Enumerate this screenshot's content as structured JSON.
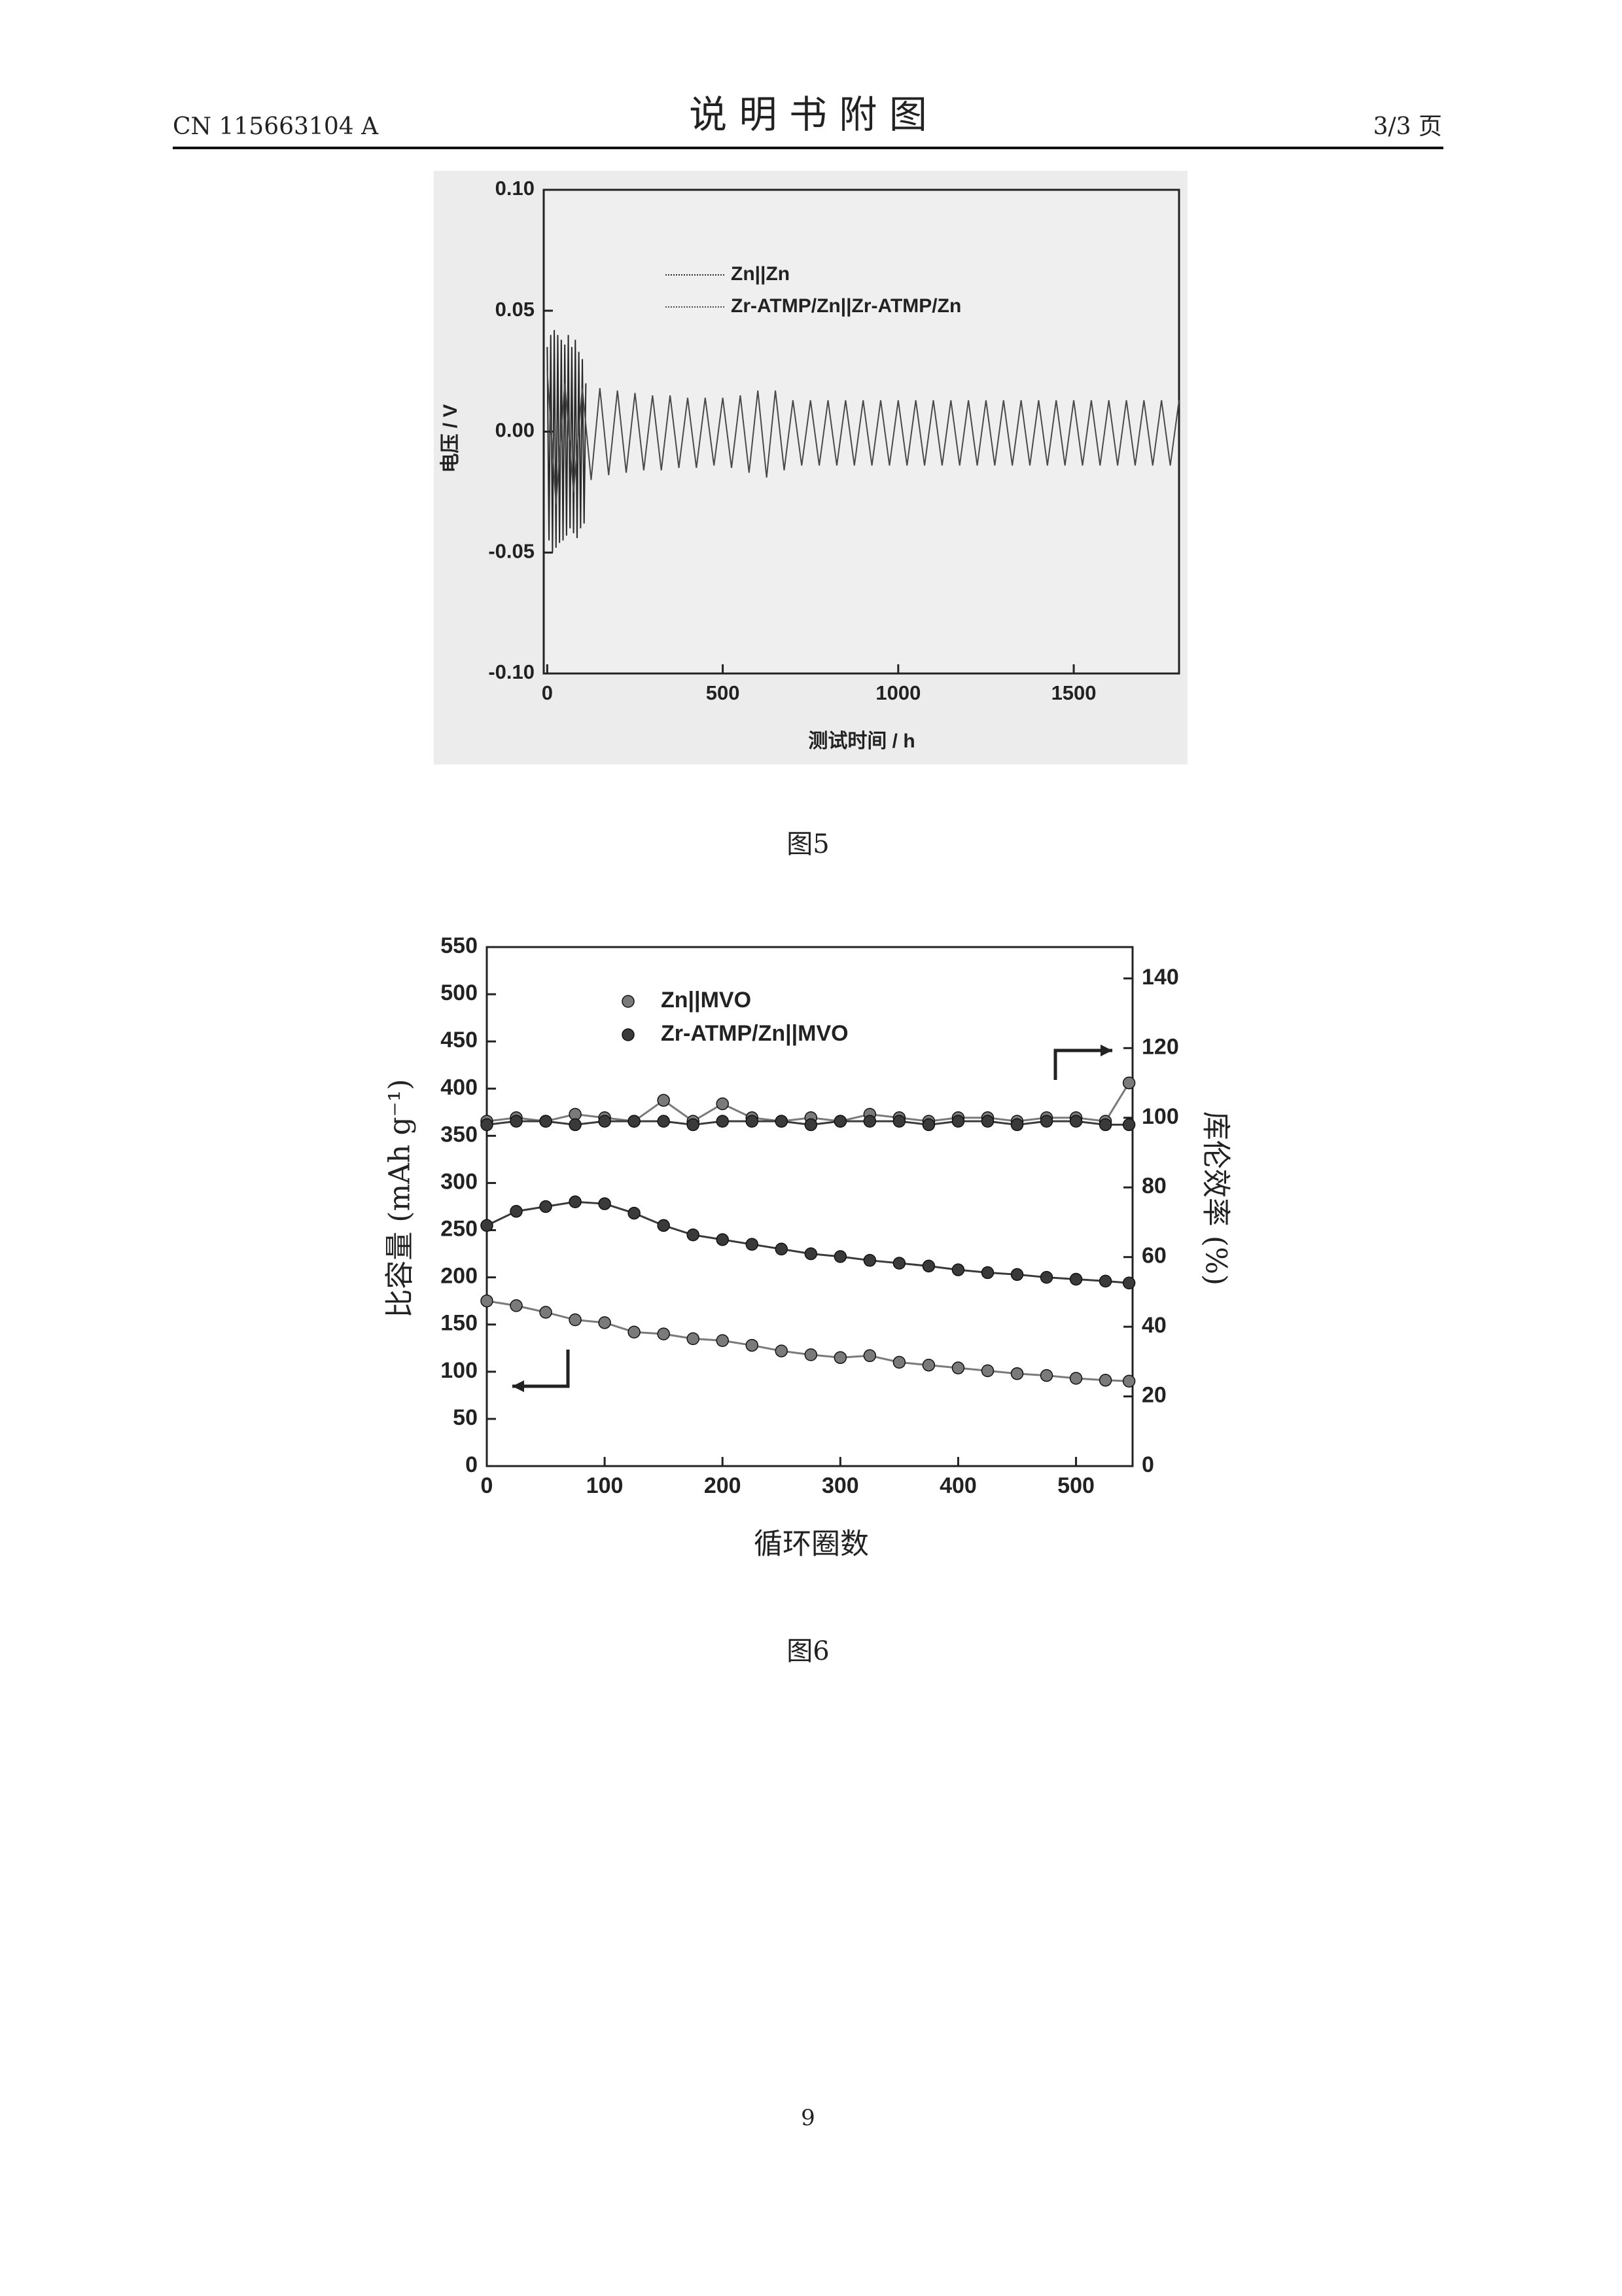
{
  "header": {
    "left": "CN 115663104 A",
    "title": "说 明 书 附 图",
    "right": "3/3 页"
  },
  "captions": [
    "图5",
    "图6"
  ],
  "page_number": "9",
  "chart_data": [
    {
      "type": "line",
      "ylabel": "电压 / V",
      "xlabel": "测试时间 / h",
      "xlim": [
        -10,
        1800
      ],
      "xticks": [
        0,
        500,
        1000,
        1500
      ],
      "ylim": [
        -0.1,
        0.1
      ],
      "yticks": [
        {
          "value": -0.1,
          "label": "-0.10"
        },
        {
          "value": -0.05,
          "label": "-0.05"
        },
        {
          "value": 0,
          "label": "0.00"
        },
        {
          "value": 0.05,
          "label": "0.05"
        },
        {
          "value": 0.1,
          "label": "0.10"
        }
      ],
      "series": [
        {
          "name": "Zn||Zn",
          "color": "#2a2a2a",
          "x": [
            0,
            5,
            10,
            15,
            20,
            25,
            30,
            35,
            40,
            45,
            50,
            55,
            60,
            65,
            70,
            75,
            80,
            85,
            90,
            95,
            100,
            105,
            110
          ],
          "values": [
            0.035,
            -0.045,
            0.04,
            -0.05,
            0.042,
            -0.048,
            0.04,
            -0.046,
            0.038,
            -0.045,
            0.036,
            -0.043,
            0.04,
            -0.04,
            0.035,
            -0.042,
            0.038,
            -0.044,
            0.033,
            -0.04,
            0.03,
            -0.038,
            0.02
          ]
        },
        {
          "name": "Zr-ATMP/Zn||Zr-ATMP/Zn",
          "color": "#4a4a4a",
          "x": [
            0,
            25,
            50,
            75,
            100,
            125,
            150,
            175,
            200,
            225,
            250,
            275,
            300,
            325,
            350,
            375,
            400,
            425,
            450,
            475,
            500,
            525,
            550,
            575,
            600,
            625,
            650,
            675,
            700,
            725,
            750,
            775,
            800,
            825,
            850,
            875,
            900,
            925,
            950,
            975,
            1000,
            1025,
            1050,
            1075,
            1100,
            1125,
            1150,
            1175,
            1200,
            1225,
            1250,
            1275,
            1300,
            1325,
            1350,
            1375,
            1400,
            1425,
            1450,
            1475,
            1500,
            1525,
            1550,
            1575,
            1600,
            1625,
            1650,
            1675,
            1700,
            1725,
            1750,
            1775,
            1800
          ],
          "values": [
            0.025,
            -0.03,
            0.02,
            -0.025,
            0.018,
            -0.02,
            0.018,
            -0.018,
            0.017,
            -0.017,
            0.016,
            -0.016,
            0.015,
            -0.016,
            0.015,
            -0.015,
            0.014,
            -0.015,
            0.014,
            -0.014,
            0.014,
            -0.015,
            0.015,
            -0.017,
            0.017,
            -0.019,
            0.017,
            -0.016,
            0.013,
            -0.014,
            0.013,
            -0.014,
            0.013,
            -0.014,
            0.013,
            -0.014,
            0.013,
            -0.014,
            0.013,
            -0.014,
            0.013,
            -0.014,
            0.013,
            -0.014,
            0.013,
            -0.014,
            0.013,
            -0.014,
            0.013,
            -0.014,
            0.013,
            -0.014,
            0.013,
            -0.014,
            0.013,
            -0.014,
            0.013,
            -0.014,
            0.013,
            -0.014,
            0.013,
            -0.014,
            0.013,
            -0.014,
            0.013,
            -0.014,
            0.013,
            -0.014,
            0.013,
            -0.014,
            0.013,
            -0.014,
            0.013
          ]
        }
      ]
    },
    {
      "type": "scatter",
      "ylabel": "比容量 (mAh g⁻¹)",
      "y2label": "库伦效率 (%)",
      "xlabel": "循环圈数",
      "xlim": [
        0,
        548
      ],
      "xticks": [
        0,
        100,
        200,
        300,
        400,
        500
      ],
      "ylim": [
        0,
        550
      ],
      "yticks": [
        0,
        50,
        100,
        150,
        200,
        250,
        300,
        350,
        400,
        450,
        500,
        550
      ],
      "y2lim": [
        0,
        149
      ],
      "y2ticks": [
        0,
        20,
        40,
        60,
        80,
        100,
        120,
        140
      ],
      "x": [
        0,
        25,
        50,
        75,
        100,
        125,
        150,
        175,
        200,
        225,
        250,
        275,
        300,
        325,
        350,
        375,
        400,
        425,
        450,
        475,
        500,
        525,
        545
      ],
      "series": [
        {
          "name": "Zn||MVO",
          "color": "#7a7a7a",
          "values": [
            175,
            170,
            163,
            155,
            152,
            142,
            140,
            135,
            133,
            128,
            122,
            118,
            115,
            117,
            110,
            107,
            104,
            101,
            98,
            96,
            93,
            91,
            90
          ]
        },
        {
          "name": "Zr-ATMP/Zn||MVO",
          "color": "#3a3a3a",
          "values": [
            255,
            270,
            275,
            280,
            278,
            268,
            255,
            245,
            240,
            235,
            230,
            225,
            222,
            218,
            215,
            212,
            208,
            205,
            203,
            200,
            198,
            196,
            194
          ]
        },
        {
          "color": "#7a7a7a",
          "axis": "y2",
          "values": [
            99,
            100,
            99,
            101,
            100,
            99,
            105,
            99,
            104,
            100,
            99,
            100,
            99,
            101,
            100,
            99,
            100,
            100,
            99,
            100,
            100,
            99,
            110
          ]
        },
        {
          "color": "#3a3a3a",
          "axis": "y2",
          "values": [
            98,
            99,
            99,
            98,
            99,
            99,
            99,
            98,
            99,
            99,
            99,
            98,
            99,
            99,
            99,
            98,
            99,
            99,
            98,
            99,
            99,
            98,
            98
          ]
        }
      ]
    }
  ]
}
